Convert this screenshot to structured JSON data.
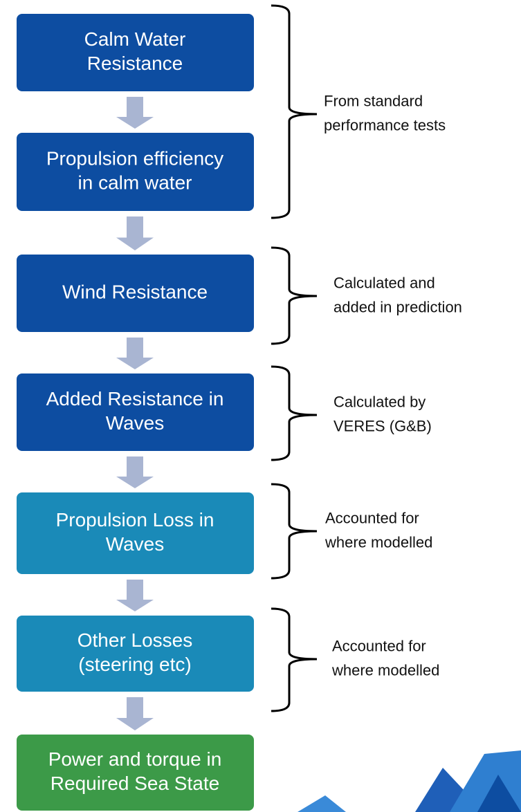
{
  "steps": [
    {
      "lines": [
        "Calm Water",
        "Resistance"
      ]
    },
    {
      "lines": [
        "Propulsion efficiency",
        "in calm water"
      ]
    },
    {
      "lines": [
        "Wind Resistance"
      ]
    },
    {
      "lines": [
        "Added Resistance in",
        "Waves"
      ]
    },
    {
      "lines": [
        "Propulsion Loss in",
        "Waves"
      ]
    },
    {
      "lines": [
        "Other Losses",
        "(steering etc)"
      ]
    },
    {
      "lines": [
        "Power and torque in",
        "Required Sea State"
      ]
    }
  ],
  "notes": [
    {
      "lines": [
        "From standard",
        "performance tests"
      ]
    },
    {
      "lines": [
        "Calculated and",
        "added in prediction"
      ]
    },
    {
      "lines": [
        "Calculated by",
        "VERES (G&B)"
      ]
    },
    {
      "lines": [
        "Accounted for",
        "where modelled"
      ]
    },
    {
      "lines": [
        "Accounted for",
        "where modelled"
      ]
    }
  ]
}
